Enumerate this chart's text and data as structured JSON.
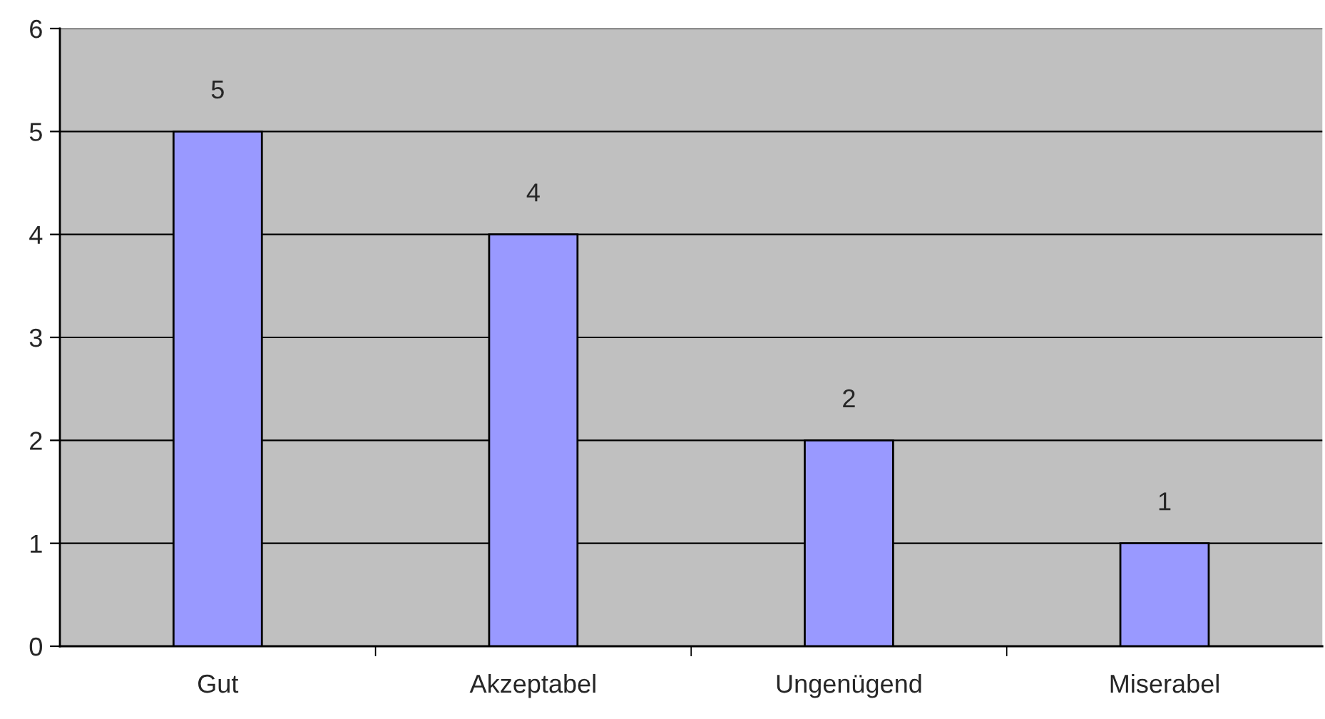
{
  "chart_data": {
    "type": "bar",
    "categories": [
      "Gut",
      "Akzeptabel",
      "Ungenügend",
      "Miserabel"
    ],
    "values": [
      5,
      4,
      2,
      1
    ],
    "color": "#9999ff",
    "ylim": [
      0,
      6
    ],
    "yticks": [
      0,
      1,
      2,
      3,
      4,
      5,
      6
    ],
    "grid": "y",
    "data_labels": true
  }
}
